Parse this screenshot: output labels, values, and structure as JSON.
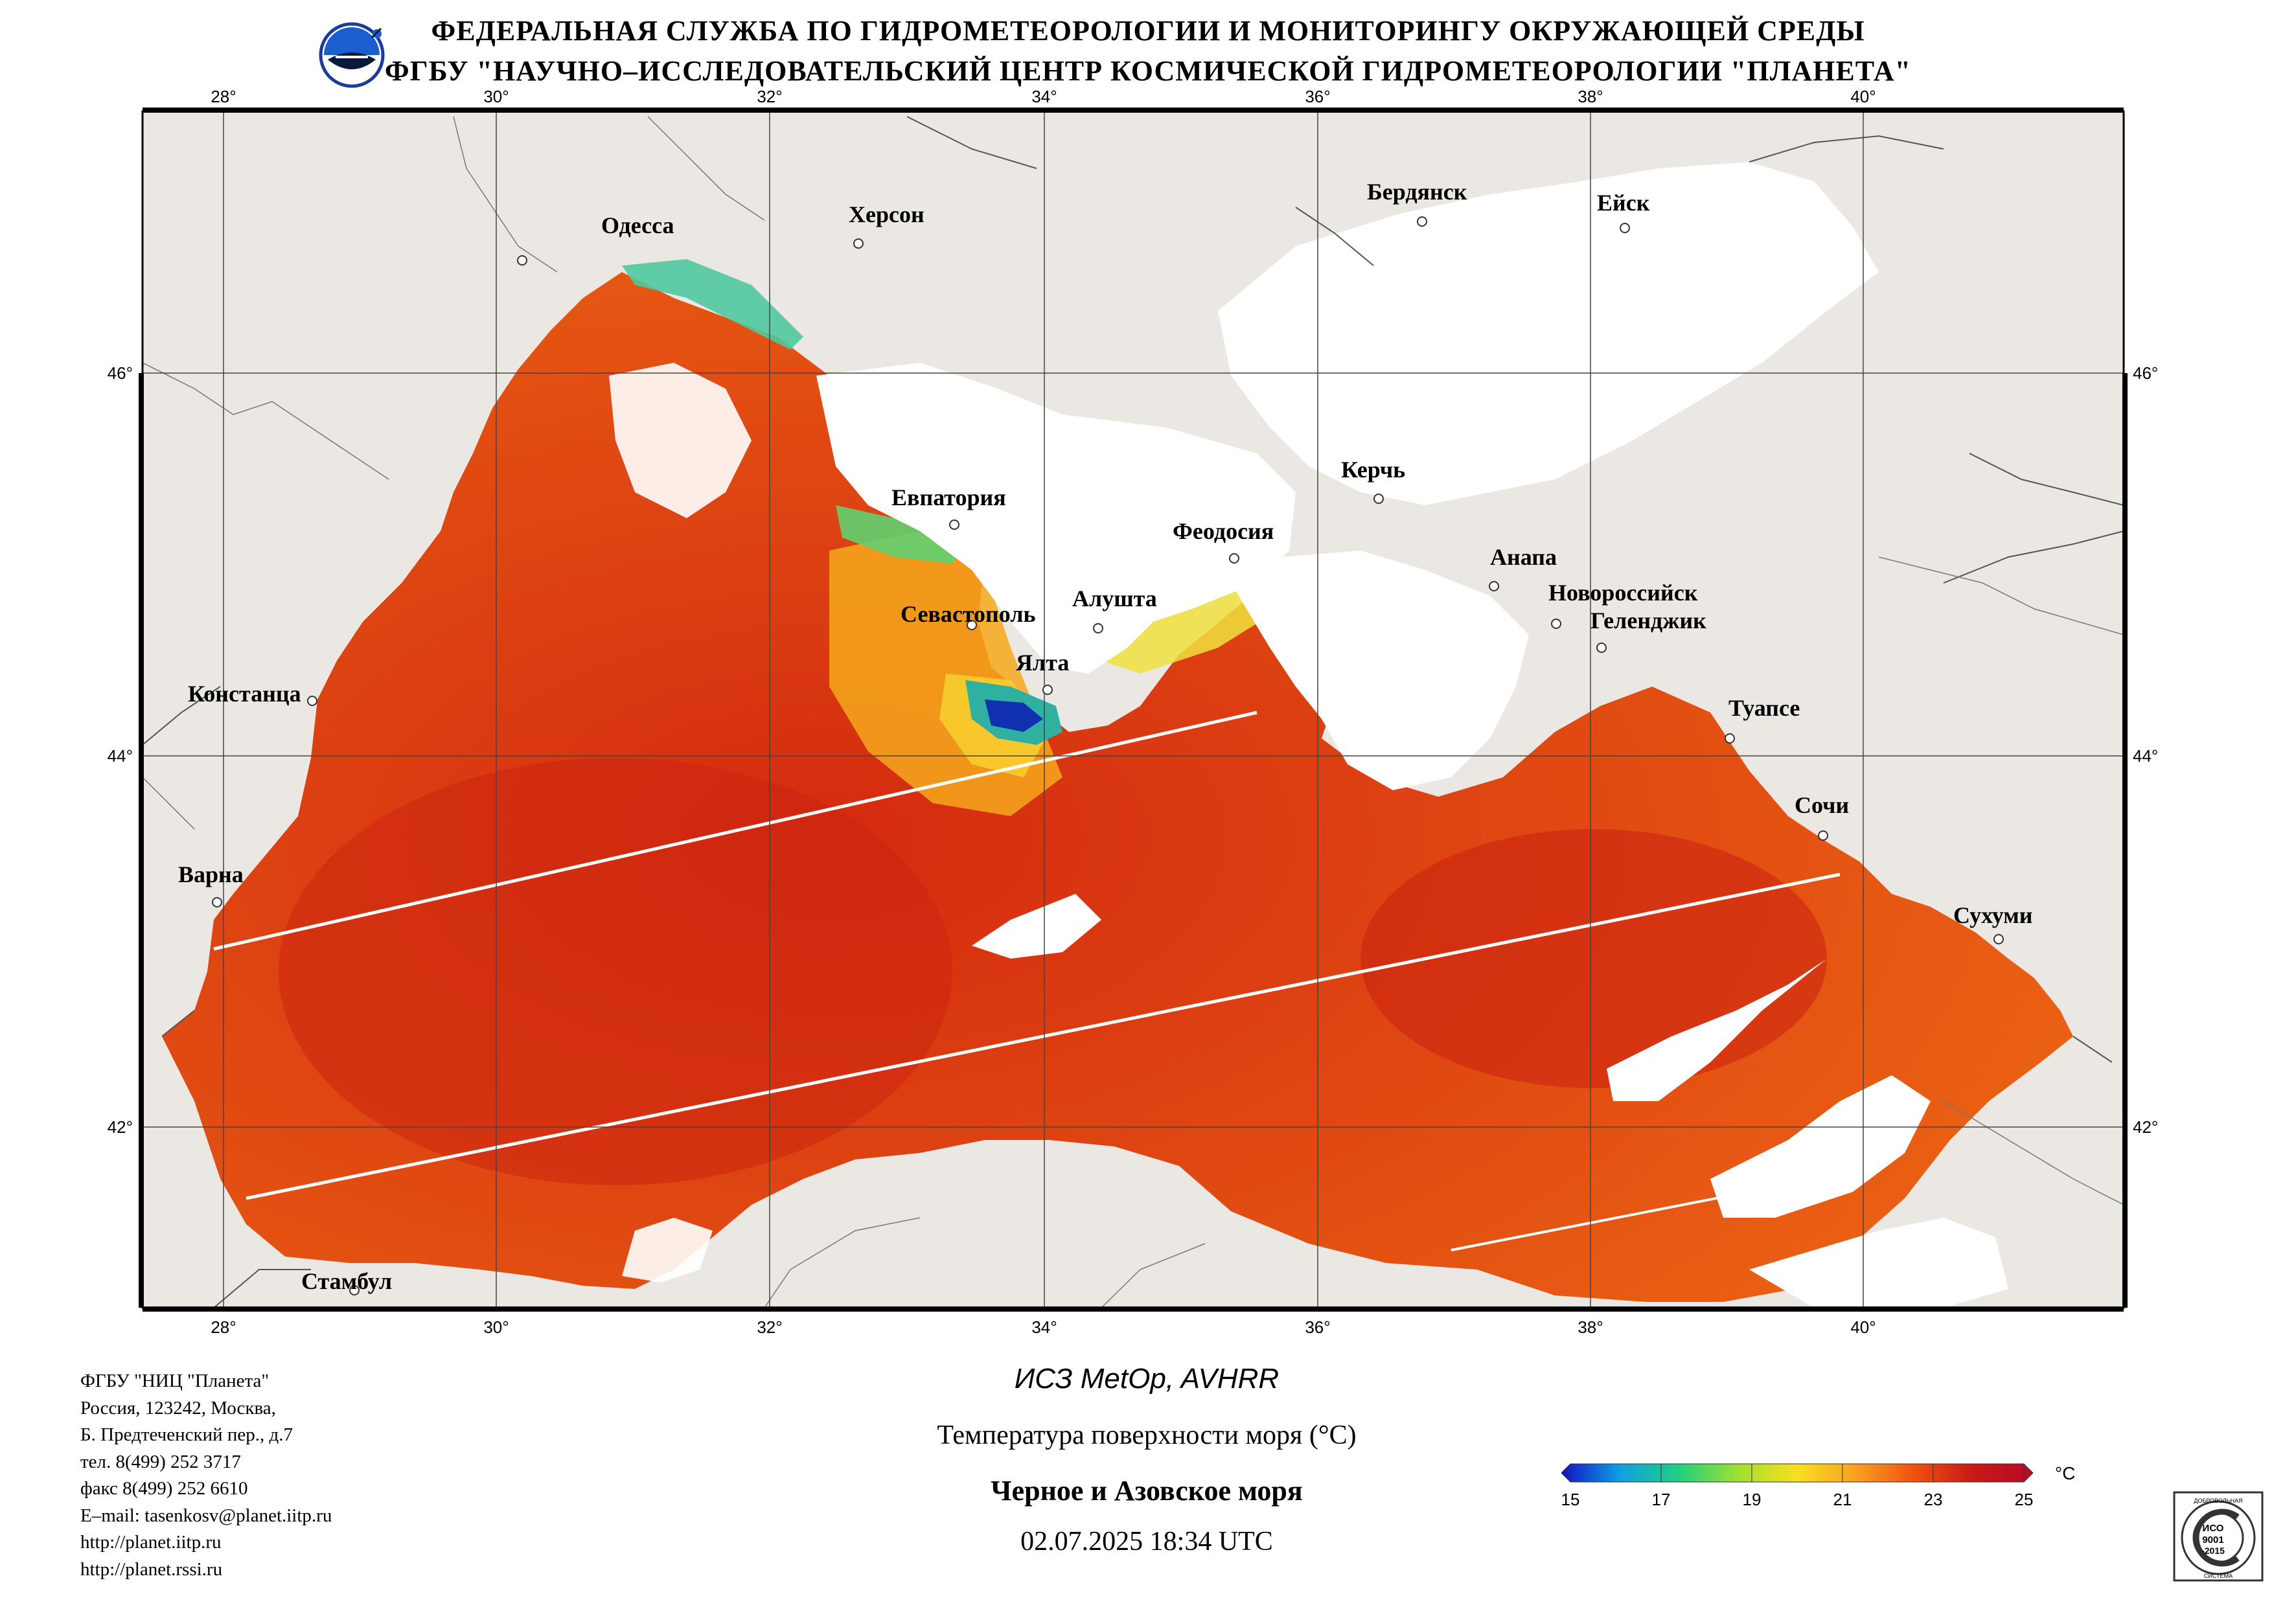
{
  "header": {
    "line1": "ФЕДЕРАЛЬНАЯ СЛУЖБА ПО ГИДРОМЕТЕОРОЛОГИИ И МОНИТОРИНГУ ОКРУЖАЮЩЕЙ СРЕДЫ",
    "line2": "ФГБУ \"НАУЧНО–ИССЛЕДОВАТЕЛЬСКИЙ ЦЕНТР КОСМИЧЕСКОЙ ГИДРОМЕТЕОРОЛОГИИ \"ПЛАНЕТА\""
  },
  "map": {
    "lon_labels": [
      "28°",
      "30°",
      "32°",
      "34°",
      "36°",
      "38°",
      "40°"
    ],
    "lat_labels": [
      "46°",
      "44°",
      "42°"
    ],
    "cities": [
      {
        "name": "Одесса"
      },
      {
        "name": "Херсон"
      },
      {
        "name": "Бердянск"
      },
      {
        "name": "Ейск"
      },
      {
        "name": "Керчь"
      },
      {
        "name": "Евпатория"
      },
      {
        "name": "Феодосия"
      },
      {
        "name": "Анапа"
      },
      {
        "name": "Новороссийск"
      },
      {
        "name": "Геленджик"
      },
      {
        "name": "Алушта"
      },
      {
        "name": "Севастополь"
      },
      {
        "name": "Ялта"
      },
      {
        "name": "Констанца"
      },
      {
        "name": "Туапсе"
      },
      {
        "name": "Сочи"
      },
      {
        "name": "Варна"
      },
      {
        "name": "Сухуми"
      },
      {
        "name": "Стамбул"
      }
    ],
    "colors": {
      "land": "#ebe8e4",
      "cloud_mask": "#ffffff",
      "sea_warm": "#d83010",
      "sea_mid": "#f06a10",
      "sea_cool": "#f8c020",
      "border_line": "#555555"
    }
  },
  "organization": {
    "lines": [
      "ФГБУ \"НИЦ \"Планета\"",
      "Россия, 123242, Москва,",
      "Б. Предтеченский пер., д.7",
      "тел. 8(499) 252 3717",
      "факс 8(499) 252 6610",
      "E–mail: tasenkosv@planet.iitp.ru",
      "http://planet.iitp.ru",
      "http://planet.rssi.ru"
    ]
  },
  "caption": {
    "satellite": "ИСЗ MetOp, AVHRR",
    "parameter": "Температура поверхности моря (°С)",
    "region": "Черное и Азовское моря",
    "datetime": "02.07.2025 18:34 UTC"
  },
  "colorbar": {
    "unit": "°C",
    "ticks": [
      "15",
      "17",
      "19",
      "21",
      "23",
      "25"
    ],
    "min": 15,
    "max": 25,
    "stops": [
      "#1010c8",
      "#10a0e0",
      "#20d080",
      "#a0e030",
      "#f8e020",
      "#f8a020",
      "#f05010",
      "#c81818",
      "#b80a28"
    ]
  },
  "certificate": {
    "top_text": "ДОБРОВОЛЬНАЯ",
    "center_line1": "ИСО",
    "center_line2": "9001",
    "center_line3": "-2015",
    "bottom_text": "СИСТЕМА"
  }
}
